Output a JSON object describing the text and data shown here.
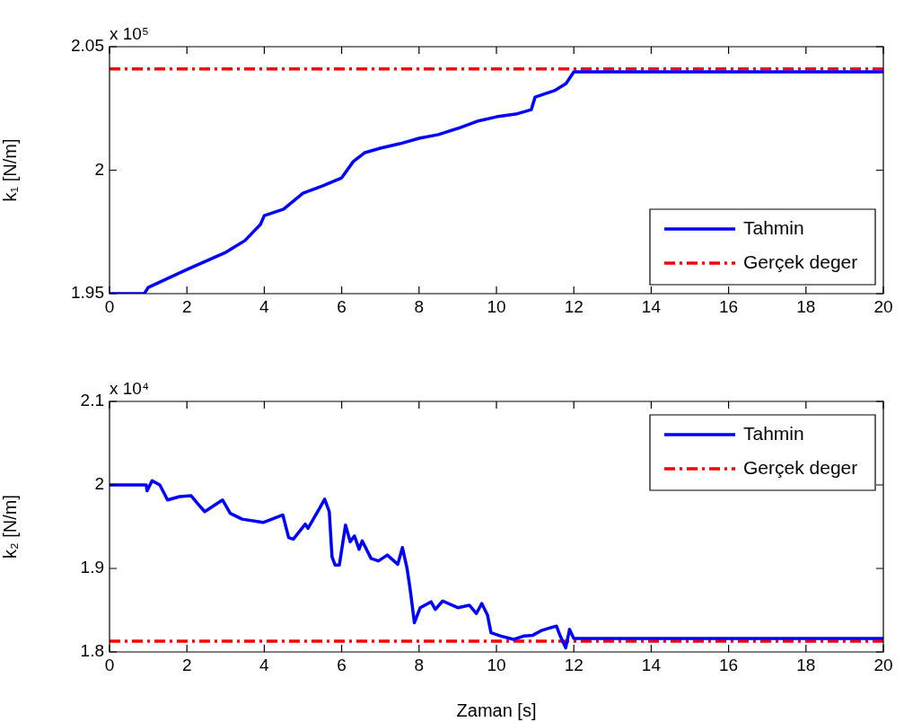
{
  "chart_data": [
    {
      "type": "line",
      "ylabel": "k₁ [N/m]",
      "annotations": [
        "x 10⁵"
      ],
      "xlim": [
        0,
        20
      ],
      "xticks": [
        0,
        2,
        4,
        6,
        8,
        10,
        12,
        14,
        16,
        18,
        20
      ],
      "ylim": [
        1.95,
        2.05
      ],
      "yticks": [
        1.95,
        2,
        2.05
      ],
      "grid": false,
      "legend": "bottom right",
      "marker": "none",
      "series": [
        {
          "name": "Tahmin",
          "color": "#0000ff",
          "line_style": "solid",
          "x": [
            0,
            0.9,
            1,
            2,
            3,
            3.5,
            3.9,
            4,
            4.5,
            5,
            5.5,
            6,
            6.3,
            6.6,
            7,
            7.5,
            8,
            8.5,
            9,
            9.5,
            10,
            10.5,
            10.9,
            11,
            11.5,
            11.8,
            12,
            20
          ],
          "values": [
            1.95,
            1.95,
            1.9525,
            1.9598,
            1.9667,
            1.9715,
            1.978,
            1.9816,
            1.9842,
            1.9907,
            1.9936,
            1.9969,
            2.0035,
            2.0071,
            2.0089,
            2.0107,
            2.0129,
            2.0144,
            2.0169,
            2.0198,
            2.0216,
            2.0227,
            2.0245,
            2.0296,
            2.0322,
            2.0351,
            2.0398,
            2.0398
          ]
        },
        {
          "name": "Gerçek deger",
          "color": "#ff0000",
          "line_style": "dashed",
          "x": [
            0,
            20
          ],
          "values": [
            2.041,
            2.041
          ]
        }
      ]
    },
    {
      "type": "line",
      "xlabel": "Zaman [s]",
      "ylabel": "k₂ [N/m]",
      "annotations": [
        "x 10⁴"
      ],
      "xlim": [
        0,
        20
      ],
      "xticks": [
        0,
        2,
        4,
        6,
        8,
        10,
        12,
        14,
        16,
        18,
        20
      ],
      "ylim": [
        1.8,
        2.1
      ],
      "yticks": [
        1.8,
        1.9,
        2,
        2.1
      ],
      "grid": false,
      "legend": "top right",
      "marker": "none",
      "series": [
        {
          "name": "Tahmin",
          "color": "#0000ff",
          "line_style": "solid",
          "x": [
            0,
            0.95,
            0.97,
            1.1,
            1.3,
            1.5,
            1.81,
            2.11,
            2.27,
            2.46,
            2.92,
            3.12,
            3.43,
            3.97,
            4.48,
            4.63,
            4.75,
            5.06,
            5.13,
            5.44,
            5.56,
            5.68,
            5.75,
            5.83,
            5.94,
            6.1,
            6.22,
            6.33,
            6.45,
            6.53,
            6.76,
            6.95,
            7.18,
            7.45,
            7.57,
            7.69,
            7.77,
            7.88,
            8.03,
            8.31,
            8.42,
            8.61,
            9.0,
            9.3,
            9.48,
            9.62,
            9.77,
            9.86,
            10.12,
            10.44,
            10.7,
            10.94,
            11.18,
            11.55,
            11.65,
            11.79,
            11.89,
            12.0,
            20
          ],
          "values": [
            2.0,
            2.0,
            1.993,
            2.005,
            2.0,
            1.982,
            1.986,
            1.987,
            1.978,
            1.968,
            1.982,
            1.966,
            1.959,
            1.955,
            1.964,
            1.937,
            1.935,
            1.953,
            1.948,
            1.973,
            1.983,
            1.968,
            1.914,
            1.904,
            1.904,
            1.952,
            1.932,
            1.939,
            1.923,
            1.933,
            1.912,
            1.909,
            1.916,
            1.905,
            1.925,
            1.9,
            1.875,
            1.835,
            1.853,
            1.86,
            1.851,
            1.861,
            1.853,
            1.856,
            1.846,
            1.858,
            1.844,
            1.823,
            1.819,
            1.815,
            1.819,
            1.82,
            1.826,
            1.831,
            1.819,
            1.805,
            1.827,
            1.816,
            1.816
          ]
        },
        {
          "name": "Gerçek deger",
          "color": "#ff0000",
          "line_style": "dashed",
          "x": [
            0,
            20
          ],
          "values": [
            1.813,
            1.813
          ]
        }
      ]
    }
  ]
}
